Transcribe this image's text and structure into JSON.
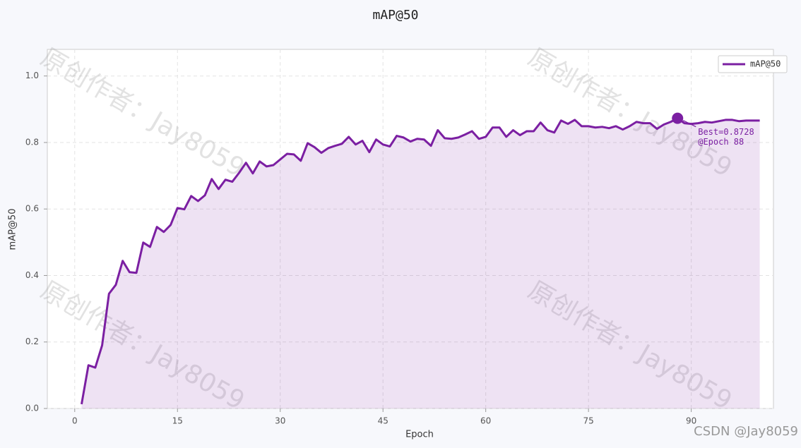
{
  "chart_data": {
    "type": "line",
    "title": "mAP@50",
    "xlabel": "Epoch",
    "ylabel": "mAP@50",
    "x": [
      1,
      2,
      3,
      4,
      5,
      6,
      7,
      8,
      9,
      10,
      11,
      12,
      13,
      14,
      15,
      16,
      17,
      18,
      19,
      20,
      21,
      22,
      23,
      24,
      25,
      26,
      27,
      28,
      29,
      30,
      31,
      32,
      33,
      34,
      35,
      36,
      37,
      38,
      39,
      40,
      41,
      42,
      43,
      44,
      45,
      46,
      47,
      48,
      49,
      50,
      51,
      52,
      53,
      54,
      55,
      56,
      57,
      58,
      59,
      60,
      61,
      62,
      63,
      64,
      65,
      66,
      67,
      68,
      69,
      70,
      71,
      72,
      73,
      74,
      75,
      76,
      77,
      78,
      79,
      80,
      81,
      82,
      83,
      84,
      85,
      86,
      87,
      88,
      89,
      90,
      91,
      92,
      93,
      94,
      95,
      96,
      97,
      98,
      99,
      100
    ],
    "series": [
      {
        "name": "mAP@50",
        "color": "#7b1fa2",
        "values": [
          0.013,
          0.13,
          0.123,
          0.19,
          0.345,
          0.372,
          0.444,
          0.41,
          0.408,
          0.499,
          0.486,
          0.546,
          0.531,
          0.552,
          0.603,
          0.599,
          0.639,
          0.624,
          0.641,
          0.69,
          0.66,
          0.688,
          0.682,
          0.709,
          0.739,
          0.707,
          0.743,
          0.728,
          0.732,
          0.749,
          0.766,
          0.764,
          0.745,
          0.798,
          0.786,
          0.769,
          0.783,
          0.79,
          0.796,
          0.817,
          0.794,
          0.805,
          0.771,
          0.809,
          0.794,
          0.788,
          0.82,
          0.815,
          0.803,
          0.811,
          0.809,
          0.79,
          0.837,
          0.813,
          0.811,
          0.815,
          0.824,
          0.834,
          0.811,
          0.817,
          0.845,
          0.845,
          0.817,
          0.837,
          0.822,
          0.834,
          0.834,
          0.86,
          0.837,
          0.83,
          0.866,
          0.856,
          0.868,
          0.849,
          0.849,
          0.845,
          0.847,
          0.843,
          0.849,
          0.839,
          0.849,
          0.862,
          0.858,
          0.858,
          0.841,
          0.854,
          0.862,
          0.8728,
          0.858,
          0.856,
          0.858,
          0.862,
          0.86,
          0.864,
          0.868,
          0.868,
          0.864,
          0.866,
          0.866,
          0.866
        ]
      }
    ],
    "best_index": 87,
    "annotation": [
      "Best=0.8728",
      "@Epoch 88"
    ],
    "xlim": [
      -4,
      102
    ],
    "ylim": [
      0,
      1.08
    ],
    "xticks": [
      0,
      15,
      30,
      45,
      60,
      75,
      90
    ],
    "yticks": [
      {
        "value": 0,
        "label": "0.0"
      },
      0.2,
      0.4,
      0.6,
      0.8,
      {
        "value": 1,
        "label": "1.0"
      }
    ],
    "grid": true,
    "legend": "upper right",
    "watermark": "原创作者：Jay8059",
    "footer": "CSDN @Jay8059"
  }
}
